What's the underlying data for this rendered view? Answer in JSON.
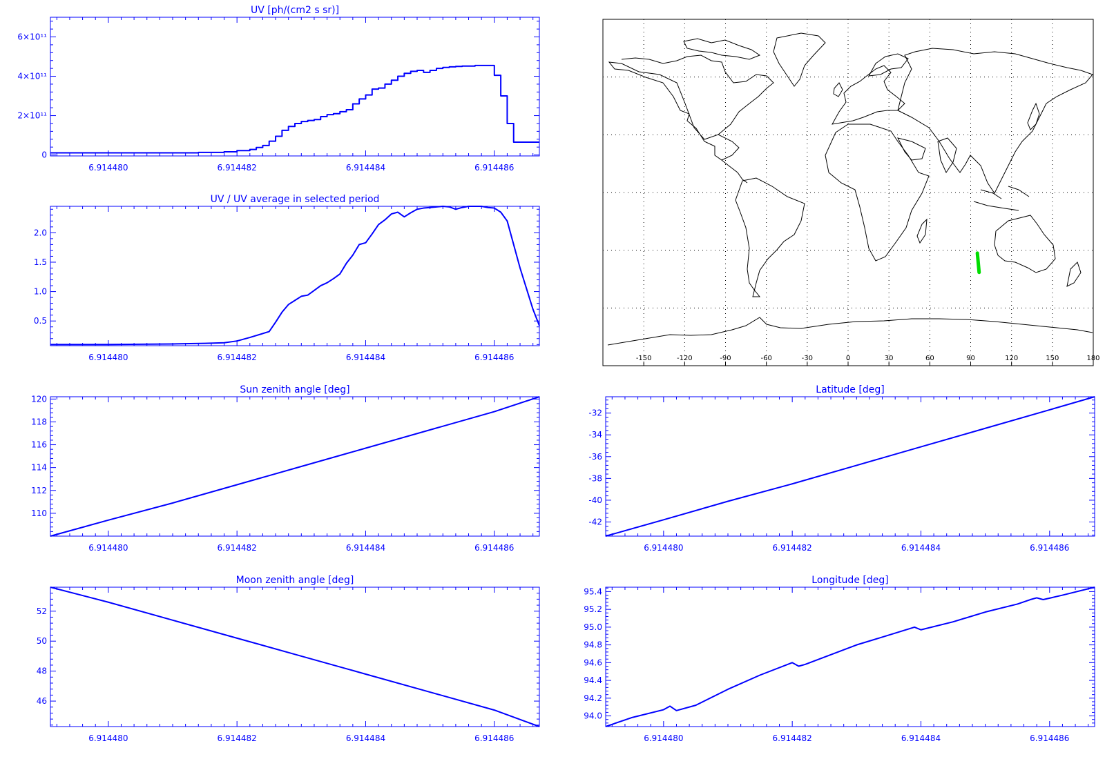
{
  "style": {
    "plot_color": "#0000ff",
    "track_color": "#00dd00",
    "map_color": "#000000"
  },
  "tick_text": [
    "6.914480",
    "6.914482",
    "6.914484",
    "6.914486"
  ],
  "map": {
    "xticks": [
      "-150",
      "-120",
      "-90",
      "-60",
      "-30",
      "0",
      "30",
      "60",
      "90",
      "120",
      "150",
      "180"
    ],
    "track": {
      "lon": [
        94.9,
        96.2
      ],
      "lat": [
        -31.5,
        -41.5
      ]
    }
  },
  "chart_data": [
    {
      "id": "uv",
      "type": "line",
      "step": true,
      "title": "UV [ph/(cm2 s sr)]",
      "xlabel": "",
      "ylabel": "",
      "xlim": [
        6.9144791,
        6.9144867
      ],
      "ylim": [
        -5000000000.0,
        700000000000.0
      ],
      "xticks": [
        6.91448,
        6.914482,
        6.914484,
        6.914486
      ],
      "yticks": [
        0,
        200000000000.0,
        400000000000.0,
        600000000000.0
      ],
      "ytick_labels": [
        "0",
        "2×10¹¹",
        "4×10¹¹",
        "6×10¹¹"
      ],
      "x": [
        6.9144791,
        6.91448,
        6.914481,
        6.9144814,
        6.9144818,
        6.914482,
        6.9144822,
        6.9144823,
        6.9144824,
        6.9144825,
        6.9144826,
        6.9144827,
        6.9144828,
        6.9144829,
        6.914483,
        6.9144831,
        6.9144832,
        6.9144833,
        6.9144834,
        6.9144835,
        6.9144836,
        6.9144837,
        6.9144838,
        6.9144839,
        6.914484,
        6.9144841,
        6.9144842,
        6.9144843,
        6.9144844,
        6.9144845,
        6.9144846,
        6.9144847,
        6.9144848,
        6.9144849,
        6.914485,
        6.9144851,
        6.9144852,
        6.9144853,
        6.9144854,
        6.9144855,
        6.9144856,
        6.9144857,
        6.9144858,
        6.9144859,
        6.914486,
        6.9144861,
        6.9144862,
        6.9144863,
        6.9144864,
        6.9144865,
        6.9144866
      ],
      "values": [
        11000000000.0,
        11000000000.0,
        11000000000.0,
        13000000000.0,
        16000000000.0,
        22000000000.0,
        28000000000.0,
        38000000000.0,
        48000000000.0,
        70000000000.0,
        95000000000.0,
        125000000000.0,
        145000000000.0,
        160000000000.0,
        170000000000.0,
        175000000000.0,
        180000000000.0,
        195000000000.0,
        205000000000.0,
        210000000000.0,
        220000000000.0,
        230000000000.0,
        260000000000.0,
        285000000000.0,
        305000000000.0,
        335000000000.0,
        340000000000.0,
        360000000000.0,
        380000000000.0,
        400000000000.0,
        415000000000.0,
        425000000000.0,
        430000000000.0,
        420000000000.0,
        430000000000.0,
        440000000000.0,
        445000000000.0,
        448000000000.0,
        450000000000.0,
        452000000000.0,
        452000000000.0,
        455000000000.0,
        455000000000.0,
        455000000000.0,
        405000000000.0,
        300000000000.0,
        160000000000.0,
        65000000000.0,
        65000000000.0,
        65000000000.0,
        65000000000.0
      ]
    },
    {
      "id": "uvratio",
      "type": "line",
      "title": "UV / UV average in selected period",
      "xlabel": "",
      "ylabel": "",
      "xlim": [
        6.9144791,
        6.9144867
      ],
      "ylim": [
        0.08,
        2.45
      ],
      "xticks": [
        6.91448,
        6.914482,
        6.914484,
        6.914486
      ],
      "yticks": [
        0.5,
        1.0,
        1.5,
        2.0
      ],
      "ytick_labels": [
        "0.5",
        "1.0",
        "1.5",
        "2.0"
      ],
      "x": [
        6.9144791,
        6.91448,
        6.914481,
        6.9144815,
        6.9144818,
        6.914482,
        6.9144822,
        6.9144825,
        6.9144826,
        6.9144827,
        6.9144828,
        6.9144829,
        6.914483,
        6.9144831,
        6.9144832,
        6.9144833,
        6.9144834,
        6.9144835,
        6.9144836,
        6.9144837,
        6.9144838,
        6.9144839,
        6.914484,
        6.9144841,
        6.9144842,
        6.9144843,
        6.9144844,
        6.9144845,
        6.9144846,
        6.9144847,
        6.9144848,
        6.9144849,
        6.914485,
        6.9144851,
        6.9144852,
        6.9144853,
        6.9144854,
        6.9144855,
        6.9144856,
        6.9144857,
        6.9144858,
        6.9144859,
        6.914486,
        6.9144861,
        6.9144862,
        6.9144864,
        6.9144866,
        6.9144867
      ],
      "values": [
        0.1,
        0.1,
        0.11,
        0.12,
        0.13,
        0.16,
        0.22,
        0.32,
        0.48,
        0.65,
        0.78,
        0.85,
        0.92,
        0.94,
        1.02,
        1.1,
        1.15,
        1.22,
        1.3,
        1.48,
        1.62,
        1.8,
        1.83,
        1.98,
        2.14,
        2.22,
        2.32,
        2.35,
        2.27,
        2.34,
        2.4,
        2.42,
        2.43,
        2.44,
        2.45,
        2.44,
        2.4,
        2.43,
        2.45,
        2.45,
        2.45,
        2.43,
        2.42,
        2.35,
        2.2,
        1.4,
        0.7,
        0.42
      ]
    },
    {
      "id": "sza",
      "type": "line",
      "title": "Sun zenith angle [deg]",
      "xlabel": "",
      "ylabel": "",
      "xlim": [
        6.9144791,
        6.9144867
      ],
      "ylim": [
        108.0,
        120.2
      ],
      "xticks": [
        6.91448,
        6.914482,
        6.914484,
        6.914486
      ],
      "yticks": [
        110,
        112,
        114,
        116,
        118,
        120
      ],
      "ytick_labels": [
        "110",
        "112",
        "114",
        "116",
        "118",
        "120"
      ],
      "x": [
        6.9144791,
        6.91448,
        6.914481,
        6.914482,
        6.914483,
        6.914484,
        6.914485,
        6.914486,
        6.9144867
      ],
      "values": [
        108.0,
        109.4,
        110.9,
        112.5,
        114.1,
        115.7,
        117.3,
        118.9,
        120.2
      ]
    },
    {
      "id": "lat",
      "type": "line",
      "title": "Latitude [deg]",
      "xlabel": "",
      "ylabel": "",
      "xlim": [
        6.9144791,
        6.9144867
      ],
      "ylim": [
        -43.3,
        -30.5
      ],
      "xticks": [
        6.91448,
        6.914482,
        6.914484,
        6.914486
      ],
      "yticks": [
        -42,
        -40,
        -38,
        -36,
        -34,
        -32
      ],
      "ytick_labels": [
        "-42",
        "-40",
        "-38",
        "-36",
        "-34",
        "-32"
      ],
      "x": [
        6.9144791,
        6.91448,
        6.914481,
        6.914482,
        6.914483,
        6.914484,
        6.914485,
        6.914486,
        6.9144867
      ],
      "values": [
        -43.3,
        -41.8,
        -40.1,
        -38.5,
        -36.8,
        -35.1,
        -33.4,
        -31.7,
        -30.5
      ]
    },
    {
      "id": "mza",
      "type": "line",
      "title": "Moon zenith angle [deg]",
      "xlabel": "",
      "ylabel": "",
      "xlim": [
        6.9144791,
        6.9144867
      ],
      "ylim": [
        44.3,
        53.6
      ],
      "xticks": [
        6.91448,
        6.914482,
        6.914484,
        6.914486
      ],
      "yticks": [
        46,
        48,
        50,
        52
      ],
      "ytick_labels": [
        "46",
        "48",
        "50",
        "52"
      ],
      "x": [
        6.9144791,
        6.91448,
        6.914481,
        6.914482,
        6.914483,
        6.914484,
        6.914485,
        6.914486,
        6.9144867
      ],
      "values": [
        53.6,
        52.6,
        51.4,
        50.2,
        49.0,
        47.8,
        46.6,
        45.4,
        44.3
      ]
    },
    {
      "id": "lon",
      "type": "line",
      "title": "Longitude [deg]",
      "xlabel": "",
      "ylabel": "",
      "xlim": [
        6.9144791,
        6.9144867
      ],
      "ylim": [
        93.88,
        95.45
      ],
      "xticks": [
        6.91448,
        6.914482,
        6.914484,
        6.914486
      ],
      "yticks": [
        94.0,
        94.2,
        94.4,
        94.6,
        94.8,
        95.0,
        95.2,
        95.4
      ],
      "ytick_labels": [
        "94.0",
        "94.2",
        "94.4",
        "94.6",
        "94.8",
        "95.0",
        "95.2",
        "95.4"
      ],
      "x": [
        6.9144791,
        6.9144795,
        6.91448,
        6.9144801,
        6.9144802,
        6.9144805,
        6.914481,
        6.9144815,
        6.914482,
        6.9144821,
        6.9144822,
        6.914483,
        6.9144835,
        6.9144839,
        6.914484,
        6.9144845,
        6.914485,
        6.9144855,
        6.9144857,
        6.9144858,
        6.9144859,
        6.9144862,
        6.9144867
      ],
      "values": [
        93.88,
        93.98,
        94.07,
        94.11,
        94.06,
        94.12,
        94.3,
        94.46,
        94.6,
        94.56,
        94.58,
        94.8,
        94.91,
        95.0,
        94.97,
        95.06,
        95.17,
        95.26,
        95.31,
        95.33,
        95.31,
        95.36,
        95.45
      ]
    }
  ]
}
